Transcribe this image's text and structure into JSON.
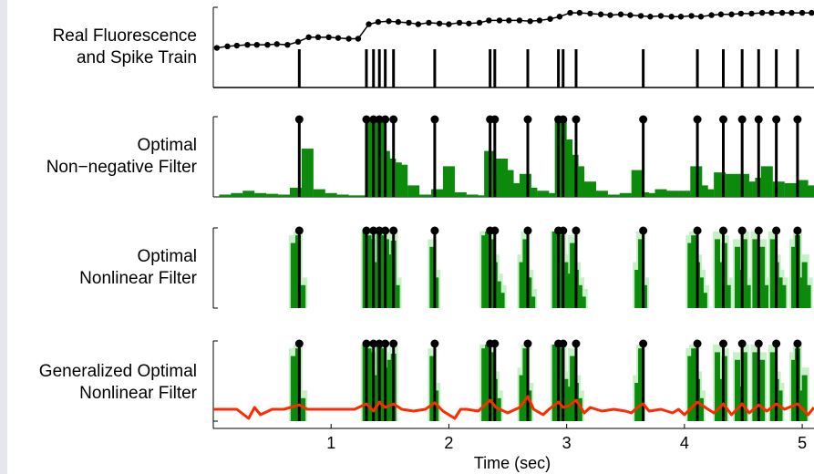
{
  "panels": [
    {
      "label_line1": "Real Fluorescence",
      "label_line2": "and Spike Train"
    },
    {
      "label_line1": "Optimal",
      "label_line2": "Non−negative Filter"
    },
    {
      "label_line1": "Optimal",
      "label_line2": "Nonlinear Filter"
    },
    {
      "label_line1": "Generalized Optimal",
      "label_line2": "Nonlinear Filter"
    }
  ],
  "colors": {
    "spike": "#000000",
    "fluorescence": "#000000",
    "filter_green": "#0b8a0b",
    "uncertainty_green": "#c6f0c6",
    "generalized_trace": "#ff2a00"
  },
  "chart_data": {
    "type": "line",
    "xlabel": "Time (sec)",
    "xlim": [
      0,
      5.1
    ],
    "xticks": [
      1,
      2,
      3,
      4,
      5
    ],
    "xtick_labels": [
      "1",
      "2",
      "3",
      "4",
      "5"
    ],
    "spike_times": [
      0.73,
      1.3,
      1.36,
      1.41,
      1.46,
      1.53,
      1.88,
      2.35,
      2.39,
      2.67,
      2.93,
      2.97,
      3.08,
      3.65,
      4.11,
      4.33,
      4.49,
      4.63,
      4.78,
      4.96
    ],
    "fluorescence": {
      "x": [
        0.03,
        0.12,
        0.2,
        0.29,
        0.37,
        0.46,
        0.54,
        0.63,
        0.72,
        0.81,
        0.89,
        0.98,
        1.06,
        1.15,
        1.23,
        1.32,
        1.4,
        1.49,
        1.57,
        1.66,
        1.74,
        1.83,
        1.92,
        2.0,
        2.09,
        2.17,
        2.26,
        2.34,
        2.43,
        2.51,
        2.6,
        2.69,
        2.77,
        2.86,
        2.94,
        3.03,
        3.11,
        3.2,
        3.29,
        3.37,
        3.46,
        3.54,
        3.63,
        3.71,
        3.8,
        3.89,
        3.97,
        4.06,
        4.14,
        4.23,
        4.31,
        4.4,
        4.48,
        4.57,
        4.66,
        4.74,
        4.83,
        4.91,
        5.0,
        5.08
      ],
      "y": [
        0.52,
        0.54,
        0.55,
        0.56,
        0.56,
        0.56,
        0.57,
        0.56,
        0.6,
        0.66,
        0.66,
        0.66,
        0.65,
        0.64,
        0.64,
        0.83,
        0.86,
        0.87,
        0.86,
        0.85,
        0.83,
        0.85,
        0.84,
        0.83,
        0.85,
        0.84,
        0.85,
        0.88,
        0.88,
        0.88,
        0.88,
        0.87,
        0.88,
        0.9,
        0.93,
        0.98,
        0.98,
        0.97,
        0.96,
        0.95,
        0.96,
        0.95,
        0.94,
        0.93,
        0.94,
        0.93,
        0.93,
        0.94,
        0.93,
        0.95,
        0.96,
        0.96,
        0.97,
        0.97,
        0.98,
        0.98,
        0.98,
        0.98,
        0.98,
        0.98
      ]
    },
    "optimal_nonnegative_filter": {
      "x": [
        0.1,
        0.2,
        0.3,
        0.4,
        0.5,
        0.6,
        0.7,
        0.8,
        0.9,
        1.0,
        1.1,
        1.2,
        1.3,
        1.35,
        1.4,
        1.45,
        1.5,
        1.55,
        1.6,
        1.7,
        1.8,
        1.9,
        2.0,
        2.1,
        2.2,
        2.3,
        2.35,
        2.4,
        2.45,
        2.5,
        2.6,
        2.65,
        2.7,
        2.8,
        2.9,
        2.95,
        3.0,
        3.05,
        3.1,
        3.2,
        3.3,
        3.4,
        3.5,
        3.6,
        3.65,
        3.7,
        3.8,
        3.9,
        4.0,
        4.1,
        4.15,
        4.2,
        4.3,
        4.35,
        4.4,
        4.45,
        4.5,
        4.6,
        4.65,
        4.7,
        4.8,
        4.9,
        4.95,
        5.0,
        5.1
      ],
      "y": [
        0.03,
        0.05,
        0.08,
        0.05,
        0.04,
        0.03,
        0.12,
        0.63,
        0.1,
        0.05,
        0.03,
        0.02,
        0.02,
        1.0,
        0.98,
        0.6,
        0.5,
        0.45,
        0.42,
        0.15,
        0.03,
        0.1,
        0.4,
        0.06,
        0.03,
        0.02,
        0.6,
        0.3,
        0.5,
        0.35,
        0.18,
        0.3,
        0.12,
        0.08,
        0.05,
        1.0,
        0.75,
        0.55,
        0.4,
        0.2,
        0.08,
        0.03,
        0.05,
        0.35,
        0.06,
        0.05,
        0.1,
        0.08,
        0.08,
        0.4,
        0.15,
        0.1,
        0.32,
        0.1,
        0.3,
        0.25,
        0.3,
        0.2,
        0.25,
        0.4,
        0.2,
        0.18,
        0.15,
        0.22,
        0.15
      ]
    },
    "optimal_nonlinear_filter": {
      "x": [
        0.68,
        0.72,
        0.76,
        1.29,
        1.32,
        1.35,
        1.38,
        1.41,
        1.44,
        1.47,
        1.5,
        1.53,
        1.56,
        1.86,
        1.89,
        2.3,
        2.33,
        2.36,
        2.39,
        2.42,
        2.45,
        2.62,
        2.65,
        2.68,
        2.71,
        2.9,
        2.93,
        2.96,
        2.99,
        3.02,
        3.05,
        3.08,
        3.11,
        3.14,
        3.6,
        3.63,
        3.66,
        4.05,
        4.08,
        4.11,
        4.14,
        4.17,
        4.28,
        4.31,
        4.34,
        4.37,
        4.45,
        4.48,
        4.51,
        4.54,
        4.6,
        4.63,
        4.66,
        4.69,
        4.75,
        4.78,
        4.81,
        4.84,
        4.93,
        4.96,
        4.99,
        5.02,
        5.05
      ],
      "y": [
        0.85,
        0.95,
        0.3,
        1.0,
        0.95,
        0.9,
        0.6,
        0.98,
        0.95,
        0.9,
        0.7,
        0.88,
        0.3,
        0.8,
        0.4,
        0.95,
        1.0,
        0.9,
        0.6,
        0.35,
        0.2,
        0.6,
        0.9,
        0.4,
        0.15,
        1.0,
        1.0,
        0.95,
        0.6,
        0.45,
        0.85,
        0.5,
        0.3,
        0.15,
        0.5,
        0.9,
        0.3,
        0.85,
        0.95,
        0.6,
        0.4,
        0.2,
        0.9,
        0.6,
        0.85,
        0.3,
        0.8,
        0.5,
        0.9,
        0.3,
        0.9,
        0.5,
        0.8,
        0.3,
        0.9,
        0.6,
        0.4,
        0.3,
        0.8,
        0.95,
        0.4,
        0.6,
        0.3
      ]
    },
    "generalized_optimal_nonlinear_filter": {
      "x": [
        0.68,
        0.72,
        0.76,
        1.29,
        1.32,
        1.35,
        1.38,
        1.41,
        1.44,
        1.47,
        1.5,
        1.53,
        1.86,
        1.89,
        2.3,
        2.33,
        2.36,
        2.39,
        2.42,
        2.62,
        2.65,
        2.68,
        2.9,
        2.93,
        2.96,
        2.99,
        3.02,
        3.05,
        3.08,
        3.11,
        3.6,
        3.63,
        4.05,
        4.08,
        4.11,
        4.14,
        4.28,
        4.31,
        4.34,
        4.45,
        4.48,
        4.51,
        4.6,
        4.63,
        4.66,
        4.75,
        4.78,
        4.81,
        4.93,
        4.96,
        4.99,
        5.02
      ],
      "y": [
        0.85,
        0.95,
        0.3,
        1.0,
        0.95,
        0.9,
        0.6,
        0.98,
        0.95,
        0.7,
        0.8,
        0.88,
        0.85,
        0.4,
        0.95,
        1.0,
        0.9,
        0.55,
        0.3,
        0.6,
        0.95,
        0.4,
        1.0,
        1.0,
        0.95,
        0.55,
        0.45,
        0.85,
        0.5,
        0.3,
        0.5,
        0.95,
        0.85,
        0.95,
        0.55,
        0.3,
        0.9,
        0.55,
        0.85,
        0.8,
        0.45,
        0.9,
        0.9,
        0.5,
        0.8,
        0.9,
        0.55,
        0.4,
        0.8,
        0.95,
        0.4,
        0.6
      ]
    },
    "generalized_red_trace": {
      "x": [
        0.0,
        0.2,
        0.3,
        0.35,
        0.4,
        0.5,
        0.6,
        0.73,
        0.8,
        0.9,
        1.0,
        1.1,
        1.2,
        1.3,
        1.36,
        1.41,
        1.46,
        1.53,
        1.6,
        1.7,
        1.8,
        1.88,
        1.95,
        2.05,
        2.1,
        2.15,
        2.25,
        2.35,
        2.4,
        2.5,
        2.6,
        2.67,
        2.72,
        2.8,
        2.85,
        2.93,
        2.97,
        3.02,
        3.08,
        3.15,
        3.2,
        3.3,
        3.4,
        3.5,
        3.55,
        3.6,
        3.65,
        3.7,
        3.8,
        3.9,
        3.95,
        4.0,
        4.11,
        4.2,
        4.25,
        4.33,
        4.4,
        4.49,
        4.55,
        4.63,
        4.7,
        4.78,
        4.85,
        4.96,
        5.05,
        5.1
      ],
      "y": [
        0.0,
        0.0,
        -0.25,
        0.05,
        -0.15,
        0.0,
        0.0,
        0.12,
        0.0,
        0.0,
        0.0,
        0.0,
        0.0,
        0.15,
        -0.05,
        0.2,
        0.05,
        0.15,
        0.0,
        -0.05,
        0.0,
        0.18,
        -0.05,
        -0.25,
        0.0,
        0.0,
        -0.05,
        0.25,
        0.05,
        -0.1,
        0.05,
        0.35,
        0.0,
        -0.15,
        0.0,
        0.2,
        0.05,
        0.1,
        0.25,
        -0.1,
        0.05,
        -0.05,
        0.0,
        -0.05,
        -0.1,
        0.05,
        0.15,
        -0.05,
        0.0,
        -0.1,
        0.0,
        -0.15,
        0.2,
        0.0,
        -0.1,
        0.15,
        -0.15,
        0.15,
        -0.1,
        0.12,
        -0.05,
        0.15,
        0.0,
        0.15,
        -0.15,
        0.05
      ]
    }
  }
}
